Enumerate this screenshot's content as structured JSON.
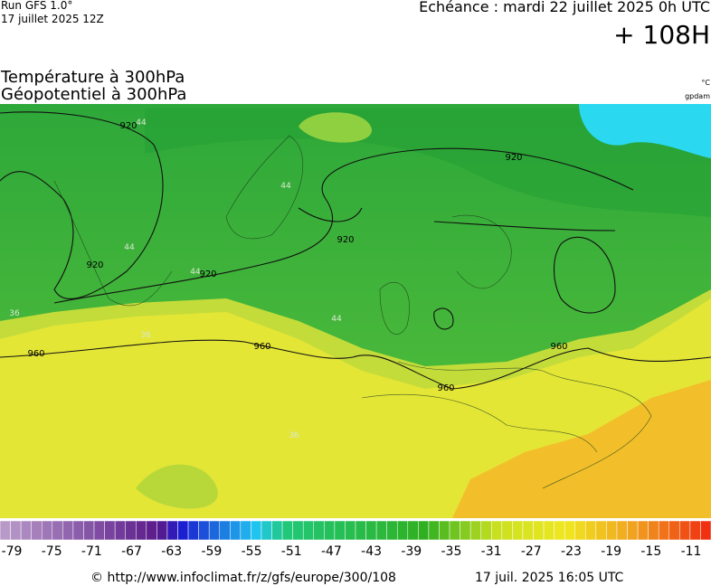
{
  "header": {
    "run": "Run GFS 1.0°",
    "run_date": "17 juillet 2025 12Z",
    "valid": "Echéance : mardi 22 juillet 2025 0h UTC",
    "lead": "+ 108H"
  },
  "titles": [
    "Température à 300hPa",
    "Géopotentiel à 300hPa"
  ],
  "units": [
    "°C",
    "gpdam"
  ],
  "contour_labels": [
    "920",
    "920",
    "920",
    "920",
    "920",
    "960",
    "960",
    "960",
    "960"
  ],
  "isotherm_labels": [
    "44",
    "44",
    "44",
    "44",
    "44",
    "36",
    "36",
    "36"
  ],
  "colorbar": {
    "ticks": [
      -79,
      -75,
      -71,
      -67,
      -63,
      -59,
      -55,
      -51,
      -47,
      -43,
      -39,
      -35,
      -31,
      -27,
      -23,
      -19,
      -15,
      -11
    ]
  },
  "footer": {
    "url": "© http://www.infoclimat.fr/z/gfs/europe/300/108",
    "generated": "17 juil. 2025 16:05 UTC"
  }
}
